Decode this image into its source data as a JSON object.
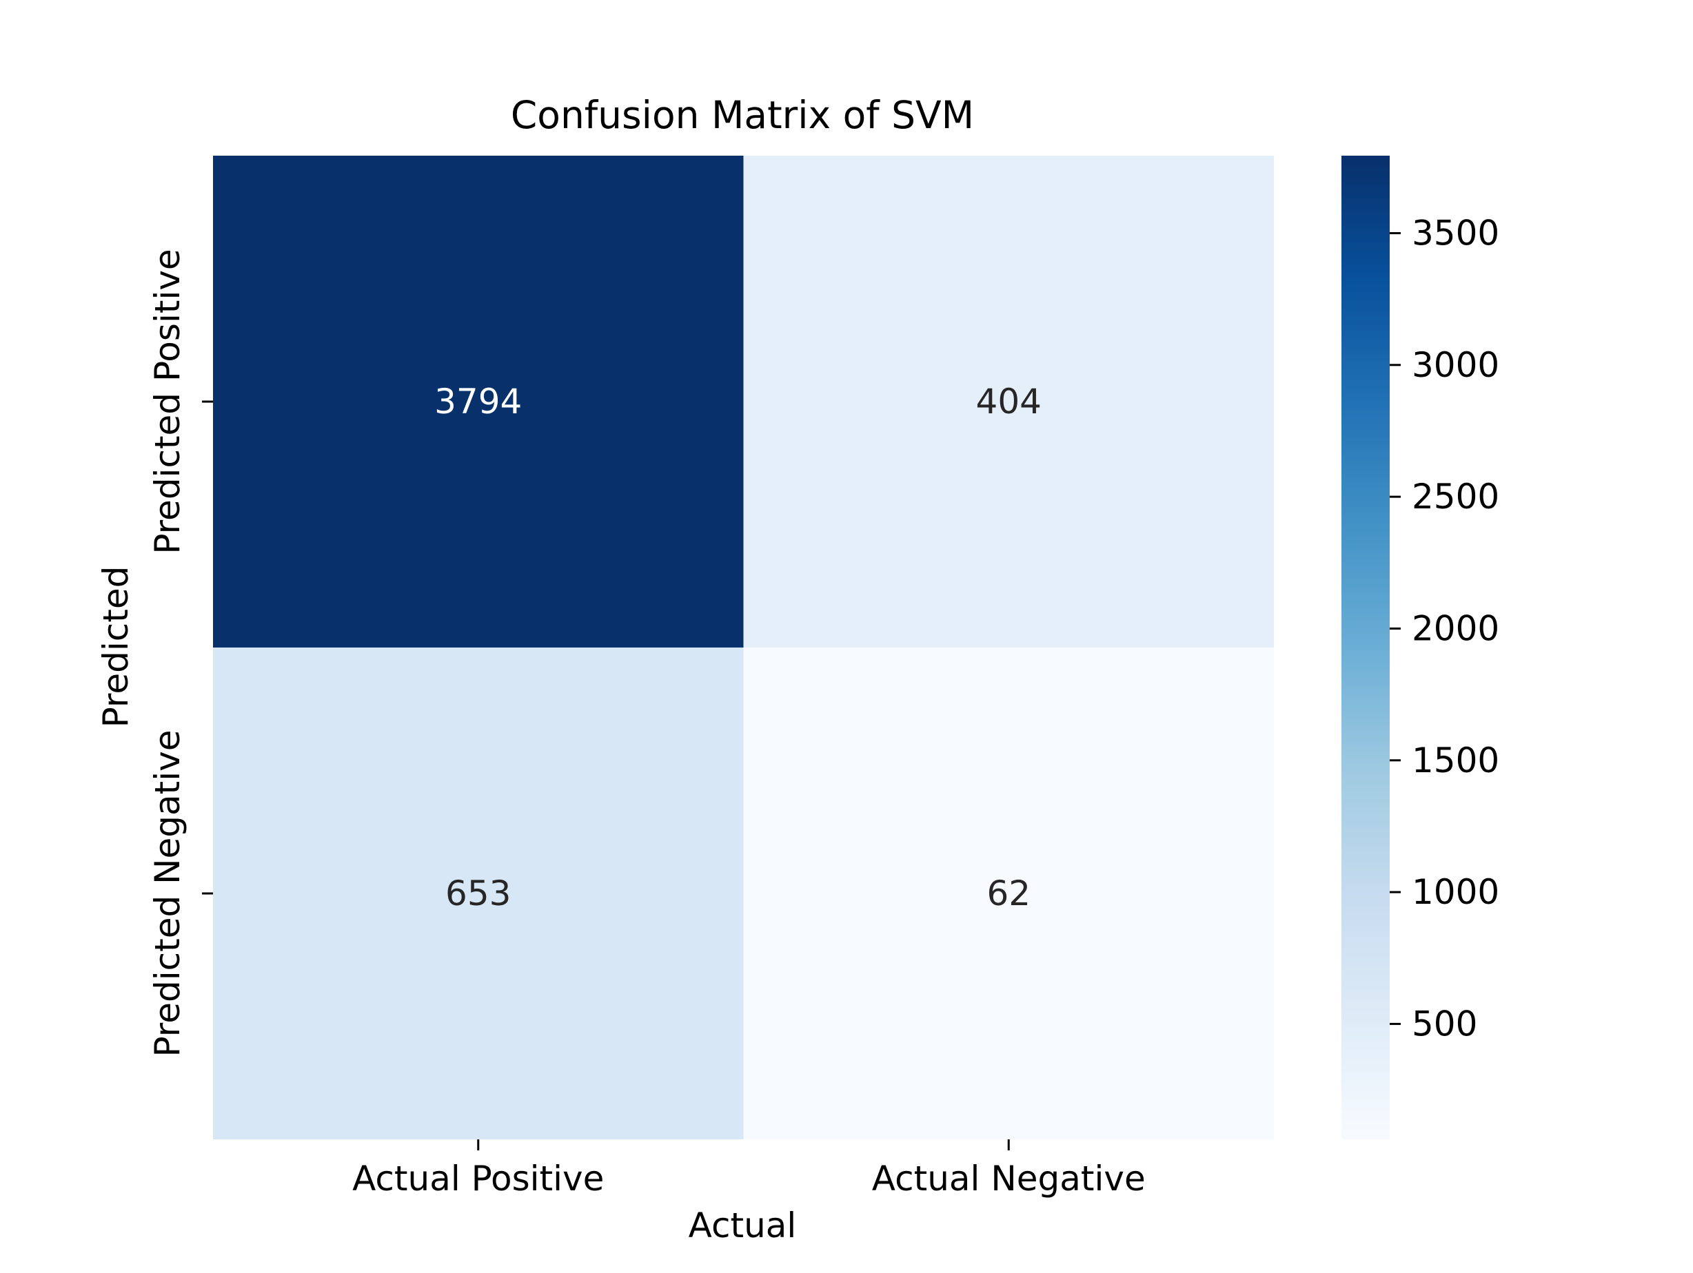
{
  "chart_data": {
    "type": "heatmap",
    "title": "Confusion Matrix of SVM",
    "xlabel": "Actual",
    "ylabel": "Predicted",
    "x_categories": [
      "Actual Positive",
      "Actual Negative"
    ],
    "y_categories": [
      "Predicted Positive",
      "Predicted Negative"
    ],
    "values": [
      [
        3794,
        404
      ],
      [
        653,
        62
      ]
    ],
    "colormap": "Blues",
    "colorbar": {
      "min": 62,
      "max": 3794,
      "ticks": [
        500,
        1000,
        1500,
        2000,
        2500,
        3000,
        3500
      ]
    },
    "colors": {
      "annotation_dark": "#262626",
      "annotation_light": "#ffffff"
    },
    "grid": false
  }
}
